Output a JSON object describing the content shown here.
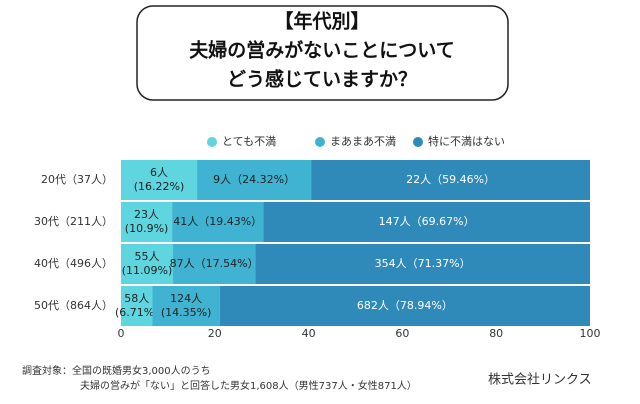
{
  "chart_data": {
    "type": "stacked-barh",
    "title_lines": [
      "【年代別】",
      "夫婦の営みがないことについて",
      "どう感じていますか？"
    ],
    "categories": [
      "20代（37人）",
      "30代（211人）",
      "40代（496人）",
      "50代（864人）"
    ],
    "series": [
      {
        "name": "とても不満",
        "color": "#5fd5e0",
        "values": [
          16.22,
          10.9,
          11.09,
          6.71
        ],
        "value_labels": [
          [
            "6人",
            "(16.22%)"
          ],
          [
            "23人",
            "(10.9%)"
          ],
          [
            "55人",
            "(11.09%)"
          ],
          [
            "58人",
            "(6.71%)"
          ]
        ]
      },
      {
        "name": "まあまあ不満",
        "color": "#3fb3d1",
        "values": [
          24.32,
          19.43,
          17.54,
          14.35
        ],
        "value_labels": [
          [
            "9人（24.32%）"
          ],
          [
            "41人（19.43%）"
          ],
          [
            "87人（17.54%）"
          ],
          [
            "124人",
            "(14.35%)"
          ]
        ]
      },
      {
        "name": "特に不満はない",
        "color": "#2f8ab9",
        "values": [
          59.46,
          69.67,
          71.37,
          78.94
        ],
        "value_labels": [
          [
            "22人（59.46%）"
          ],
          [
            "147人（69.67%）"
          ],
          [
            "354人（71.37%）"
          ],
          [
            "682人（78.94%）"
          ]
        ]
      }
    ],
    "xlim": [
      0,
      100
    ],
    "xticks": [
      0,
      20,
      40,
      60,
      80,
      100
    ],
    "legend": "top",
    "footnote_lines": [
      "調査対象：全国の既婚男女3,000人のうち",
      "夫婦の営みが「ない」と回答した男女1,608人（男性737人・女性871人）"
    ],
    "source": "株式会社リンクス"
  }
}
